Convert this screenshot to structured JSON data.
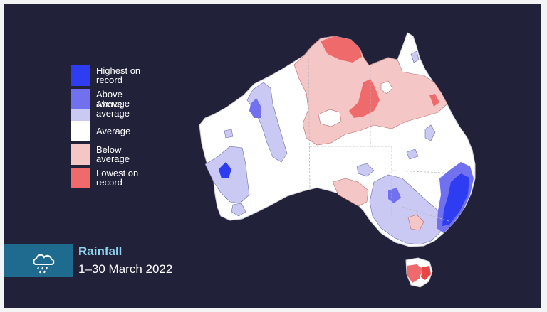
{
  "map": {
    "title": "Rainfall",
    "period": "1–30 March 2022",
    "icon": "rain-cloud-icon"
  },
  "legend": {
    "items": [
      {
        "label": "Highest on\nrecord",
        "color": "#2e3cf2"
      },
      {
        "label": "Above\naverage",
        "color": "#7170ef"
      },
      {
        "label": "Above\naverage",
        "color": "#c9c9f4"
      },
      {
        "label": "Average",
        "color": "#ffffff"
      },
      {
        "label": "Below\naverage",
        "color": "#f5c6c6"
      },
      {
        "label": "Lowest on\nrecord",
        "color": "#ef6b6b"
      }
    ]
  },
  "colors": {
    "background": "#21213a",
    "panel_accent": "#1f6b8f",
    "title": "#8fd5f0",
    "text": "#ffffff",
    "average": "#ffffff",
    "above": "#c9c9f4",
    "much_above": "#7170ef",
    "highest": "#2e3cf2",
    "below": "#f5c6c6",
    "very_low": "#ef6b6b",
    "lowest": "#e84545"
  }
}
